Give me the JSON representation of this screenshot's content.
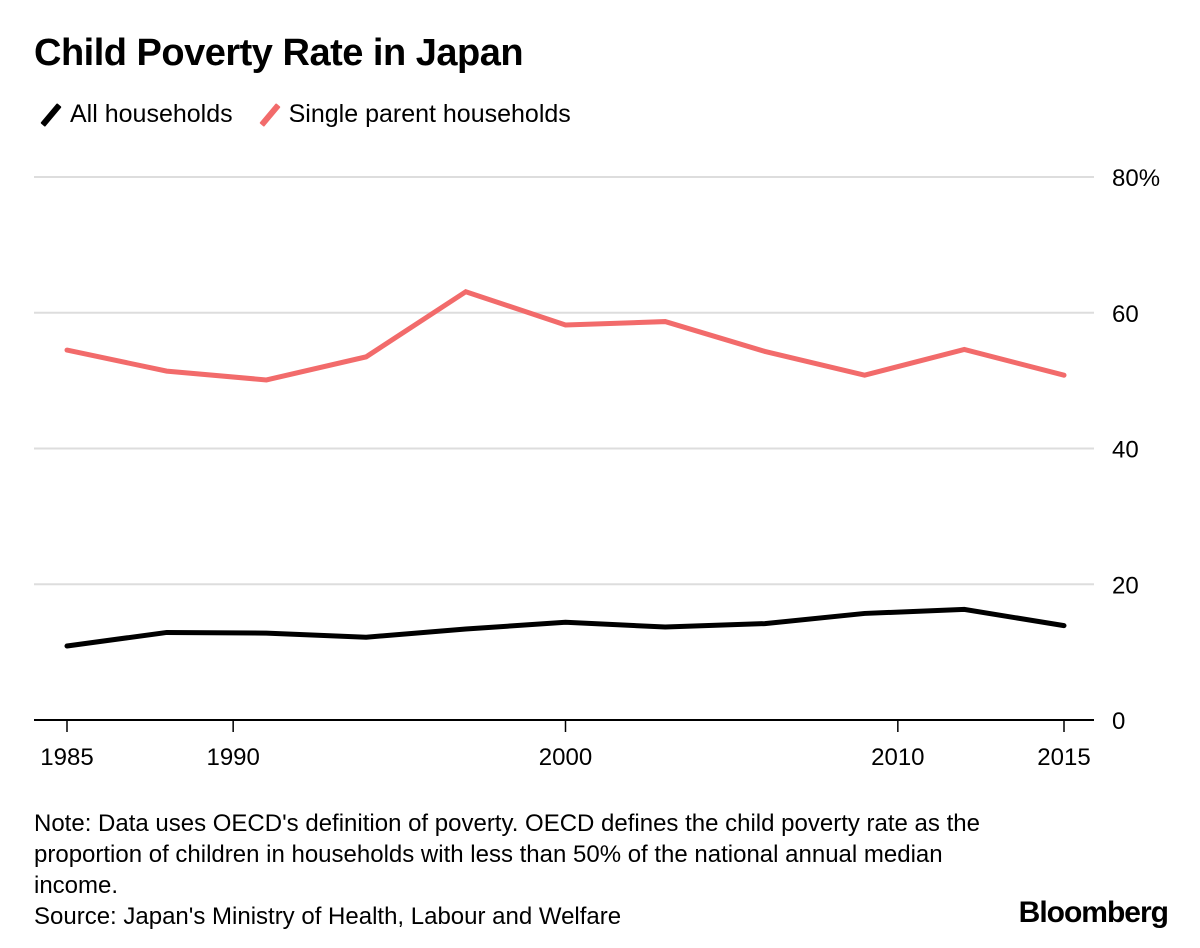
{
  "colors": {
    "all": "#000000",
    "single": "#f26b6b",
    "grid": "#dddddd",
    "axis": "#000000"
  },
  "logo": "Bloomberg",
  "note": "Note: Data uses OECD's definition of poverty. OECD defines the child poverty rate as the proportion of children in households with less than 50% of the national annual median income.",
  "source": "Source: Japan's Ministry of Health, Labour and Welfare",
  "chart_data": {
    "type": "line",
    "title": "Child Poverty Rate in Japan",
    "xlabel": "",
    "ylabel": "",
    "x": [
      1985,
      1988,
      1991,
      1994,
      1997,
      2000,
      2003,
      2006,
      2009,
      2012,
      2015
    ],
    "series": [
      {
        "name": "All households",
        "color": "#000000",
        "values": [
          10.9,
          12.9,
          12.8,
          12.2,
          13.4,
          14.4,
          13.7,
          14.2,
          15.7,
          16.3,
          13.9
        ]
      },
      {
        "name": "Single parent households",
        "color": "#f26b6b",
        "values": [
          54.5,
          51.4,
          50.1,
          53.5,
          63.1,
          58.2,
          58.7,
          54.3,
          50.8,
          54.6,
          50.8
        ]
      }
    ],
    "xlim": [
      1985,
      2015
    ],
    "ylim": [
      0,
      80
    ],
    "xticks": [
      1985,
      1990,
      2000,
      2010,
      2015
    ],
    "xtick_labels": [
      "1985",
      "1990",
      "2000",
      "2010",
      "2015"
    ],
    "yticks": [
      0,
      20,
      40,
      60,
      80
    ],
    "ytick_labels": [
      "0",
      "20",
      "40",
      "60",
      "80%"
    ],
    "grid": true,
    "legend": "top-left",
    "y_axis_side": "right"
  }
}
